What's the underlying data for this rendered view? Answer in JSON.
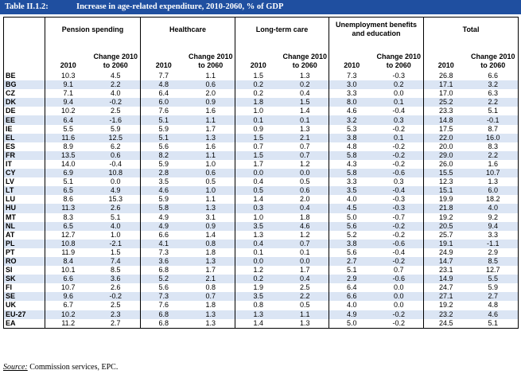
{
  "title": {
    "label": "Table II.1.2:",
    "text": "Increase in age-related expenditure, 2010-2060, % of GDP"
  },
  "groups": [
    "Pension spending",
    "Healthcare",
    "Long-term care",
    "Unemployment benefits and education",
    "Total"
  ],
  "subheaders": [
    "2010",
    "Change 2010 to 2060"
  ],
  "rows": [
    {
      "country": "BE",
      "v": [
        "10.3",
        "4.5",
        "7.7",
        "1.1",
        "1.5",
        "1.3",
        "7.3",
        "-0.3",
        "26.8",
        "6.6"
      ]
    },
    {
      "country": "BG",
      "v": [
        "9.1",
        "2.2",
        "4.8",
        "0.6",
        "0.2",
        "0.2",
        "3.0",
        "0.2",
        "17.1",
        "3.2"
      ]
    },
    {
      "country": "CZ",
      "v": [
        "7.1",
        "4.0",
        "6.4",
        "2.0",
        "0.2",
        "0.4",
        "3.3",
        "0.0",
        "17.0",
        "6.3"
      ]
    },
    {
      "country": "DK",
      "v": [
        "9.4",
        "-0.2",
        "6.0",
        "0.9",
        "1.8",
        "1.5",
        "8.0",
        "0.1",
        "25.2",
        "2.2"
      ]
    },
    {
      "country": "DE",
      "v": [
        "10.2",
        "2.5",
        "7.6",
        "1.6",
        "1.0",
        "1.4",
        "4.6",
        "-0.4",
        "23.3",
        "5.1"
      ]
    },
    {
      "country": "EE",
      "v": [
        "6.4",
        "-1.6",
        "5.1",
        "1.1",
        "0.1",
        "0.1",
        "3.2",
        "0.3",
        "14.8",
        "-0.1"
      ]
    },
    {
      "country": "IE",
      "v": [
        "5.5",
        "5.9",
        "5.9",
        "1.7",
        "0.9",
        "1.3",
        "5.3",
        "-0.2",
        "17.5",
        "8.7"
      ]
    },
    {
      "country": "EL",
      "v": [
        "11.6",
        "12.5",
        "5.1",
        "1.3",
        "1.5",
        "2.1",
        "3.8",
        "0.1",
        "22.0",
        "16.0"
      ]
    },
    {
      "country": "ES",
      "v": [
        "8.9",
        "6.2",
        "5.6",
        "1.6",
        "0.7",
        "0.7",
        "4.8",
        "-0.2",
        "20.0",
        "8.3"
      ]
    },
    {
      "country": "FR",
      "v": [
        "13.5",
        "0.6",
        "8.2",
        "1.1",
        "1.5",
        "0.7",
        "5.8",
        "-0.2",
        "29.0",
        "2.2"
      ]
    },
    {
      "country": "IT",
      "v": [
        "14.0",
        "-0.4",
        "5.9",
        "1.0",
        "1.7",
        "1.2",
        "4.3",
        "-0.2",
        "26.0",
        "1.6"
      ]
    },
    {
      "country": "CY",
      "v": [
        "6.9",
        "10.8",
        "2.8",
        "0.6",
        "0.0",
        "0.0",
        "5.8",
        "-0.6",
        "15.5",
        "10.7"
      ]
    },
    {
      "country": "LV",
      "v": [
        "5.1",
        "0.0",
        "3.5",
        "0.5",
        "0.4",
        "0.5",
        "3.3",
        "0.3",
        "12.3",
        "1.3"
      ]
    },
    {
      "country": "LT",
      "v": [
        "6.5",
        "4.9",
        "4.6",
        "1.0",
        "0.5",
        "0.6",
        "3.5",
        "-0.4",
        "15.1",
        "6.0"
      ]
    },
    {
      "country": "LU",
      "v": [
        "8.6",
        "15.3",
        "5.9",
        "1.1",
        "1.4",
        "2.0",
        "4.0",
        "-0.3",
        "19.9",
        "18.2"
      ]
    },
    {
      "country": "HU",
      "v": [
        "11.3",
        "2.6",
        "5.8",
        "1.3",
        "0.3",
        "0.4",
        "4.5",
        "-0.3",
        "21.8",
        "4.0"
      ]
    },
    {
      "country": "MT",
      "v": [
        "8.3",
        "5.1",
        "4.9",
        "3.1",
        "1.0",
        "1.8",
        "5.0",
        "-0.7",
        "19.2",
        "9.2"
      ]
    },
    {
      "country": "NL",
      "v": [
        "6.5",
        "4.0",
        "4.9",
        "0.9",
        "3.5",
        "4.6",
        "5.6",
        "-0.2",
        "20.5",
        "9.4"
      ]
    },
    {
      "country": "AT",
      "v": [
        "12.7",
        "1.0",
        "6.6",
        "1.4",
        "1.3",
        "1.2",
        "5.2",
        "-0.2",
        "25.7",
        "3.3"
      ]
    },
    {
      "country": "PL",
      "v": [
        "10.8",
        "-2.1",
        "4.1",
        "0.8",
        "0.4",
        "0.7",
        "3.8",
        "-0.6",
        "19.1",
        "-1.1"
      ]
    },
    {
      "country": "PT",
      "v": [
        "11.9",
        "1.5",
        "7.3",
        "1.8",
        "0.1",
        "0.1",
        "5.6",
        "-0.4",
        "24.9",
        "2.9"
      ]
    },
    {
      "country": "RO",
      "v": [
        "8.4",
        "7.4",
        "3.6",
        "1.3",
        "0.0",
        "0.0",
        "2.7",
        "-0.2",
        "14.7",
        "8.5"
      ]
    },
    {
      "country": "SI",
      "v": [
        "10.1",
        "8.5",
        "6.8",
        "1.7",
        "1.2",
        "1.7",
        "5.1",
        "0.7",
        "23.1",
        "12.7"
      ]
    },
    {
      "country": "SK",
      "v": [
        "6.6",
        "3.6",
        "5.2",
        "2.1",
        "0.2",
        "0.4",
        "2.9",
        "-0.6",
        "14.9",
        "5.5"
      ]
    },
    {
      "country": "FI",
      "v": [
        "10.7",
        "2.6",
        "5.6",
        "0.8",
        "1.9",
        "2.5",
        "6.4",
        "0.0",
        "24.7",
        "5.9"
      ]
    },
    {
      "country": "SE",
      "v": [
        "9.6",
        "-0.2",
        "7.3",
        "0.7",
        "3.5",
        "2.2",
        "6.6",
        "0.0",
        "27.1",
        "2.7"
      ]
    },
    {
      "country": "UK",
      "v": [
        "6.7",
        "2.5",
        "7.6",
        "1.8",
        "0.8",
        "0.5",
        "4.0",
        "0.0",
        "19.2",
        "4.8"
      ]
    },
    {
      "country": "EU-27",
      "v": [
        "10.2",
        "2.3",
        "6.8",
        "1.3",
        "1.3",
        "1.1",
        "4.9",
        "-0.2",
        "23.2",
        "4.6"
      ]
    },
    {
      "country": "EA",
      "v": [
        "11.2",
        "2.7",
        "6.8",
        "1.3",
        "1.4",
        "1.3",
        "5.0",
        "-0.2",
        "24.5",
        "5.1"
      ]
    }
  ],
  "source": {
    "label": "Source:",
    "text": "Commission services, EPC."
  }
}
